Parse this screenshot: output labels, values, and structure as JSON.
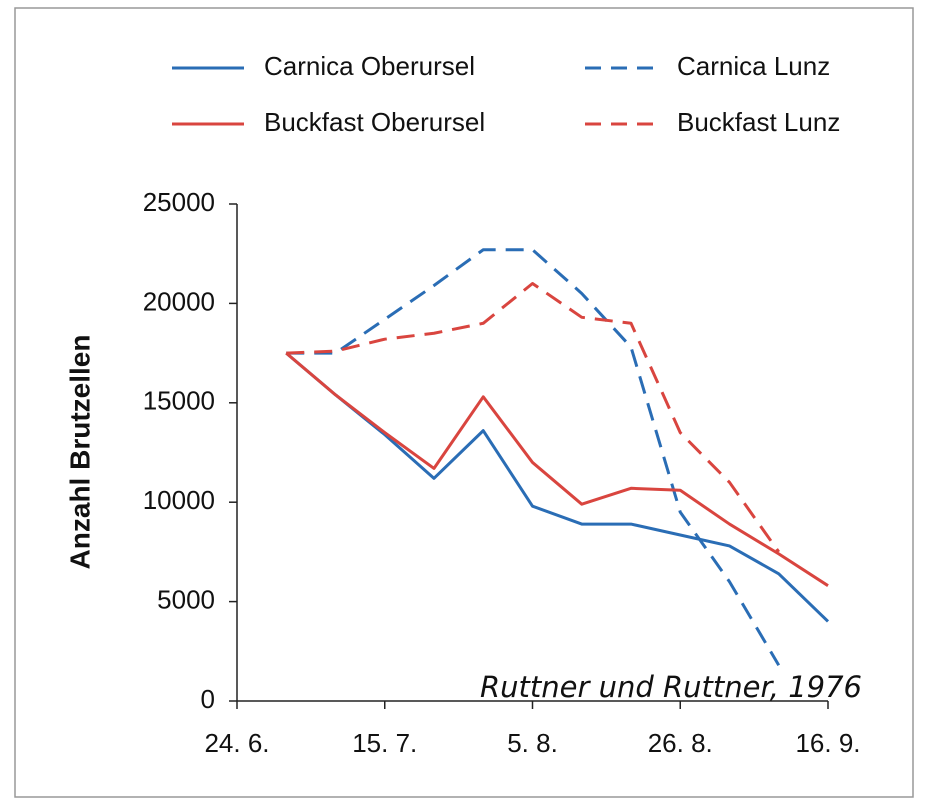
{
  "chart_data": {
    "type": "line",
    "y_label": "Anzahl Brutzellen",
    "annotation": "Ruttner und Ruttner, 1976",
    "categories": [
      "24. 6.",
      null,
      null,
      "15. 7.",
      null,
      null,
      "5. 8.",
      null,
      null,
      "26. 8.",
      null,
      null,
      "16. 9."
    ],
    "series": [
      {
        "name": "Carnica Oberursel",
        "color": "#2a6db5",
        "dashed": false,
        "values": [
          null,
          17500,
          15400,
          13400,
          11200,
          13600,
          9800,
          8900,
          8900,
          8350,
          7800,
          6400,
          4000
        ]
      },
      {
        "name": "Carnica Lunz",
        "color": "#2a6db5",
        "dashed": true,
        "values": [
          null,
          17500,
          17500,
          19200,
          20900,
          22700,
          22700,
          20500,
          17800,
          9500,
          6000,
          1800,
          null
        ]
      },
      {
        "name": "Buckfast Oberursel",
        "color": "#d9453f",
        "dashed": false,
        "values": [
          null,
          17500,
          15400,
          13500,
          11700,
          15300,
          12000,
          9900,
          10700,
          10600,
          8900,
          7400,
          5800
        ]
      },
      {
        "name": "Buckfast Lunz",
        "color": "#d9453f",
        "dashed": true,
        "values": [
          null,
          17500,
          17600,
          18200,
          18500,
          19000,
          21000,
          19300,
          19000,
          13500,
          11000,
          7500,
          null
        ]
      }
    ],
    "ylim": [
      0,
      25000
    ],
    "yticks": [
      0,
      5000,
      10000,
      15000,
      20000,
      25000
    ],
    "grid": false
  }
}
